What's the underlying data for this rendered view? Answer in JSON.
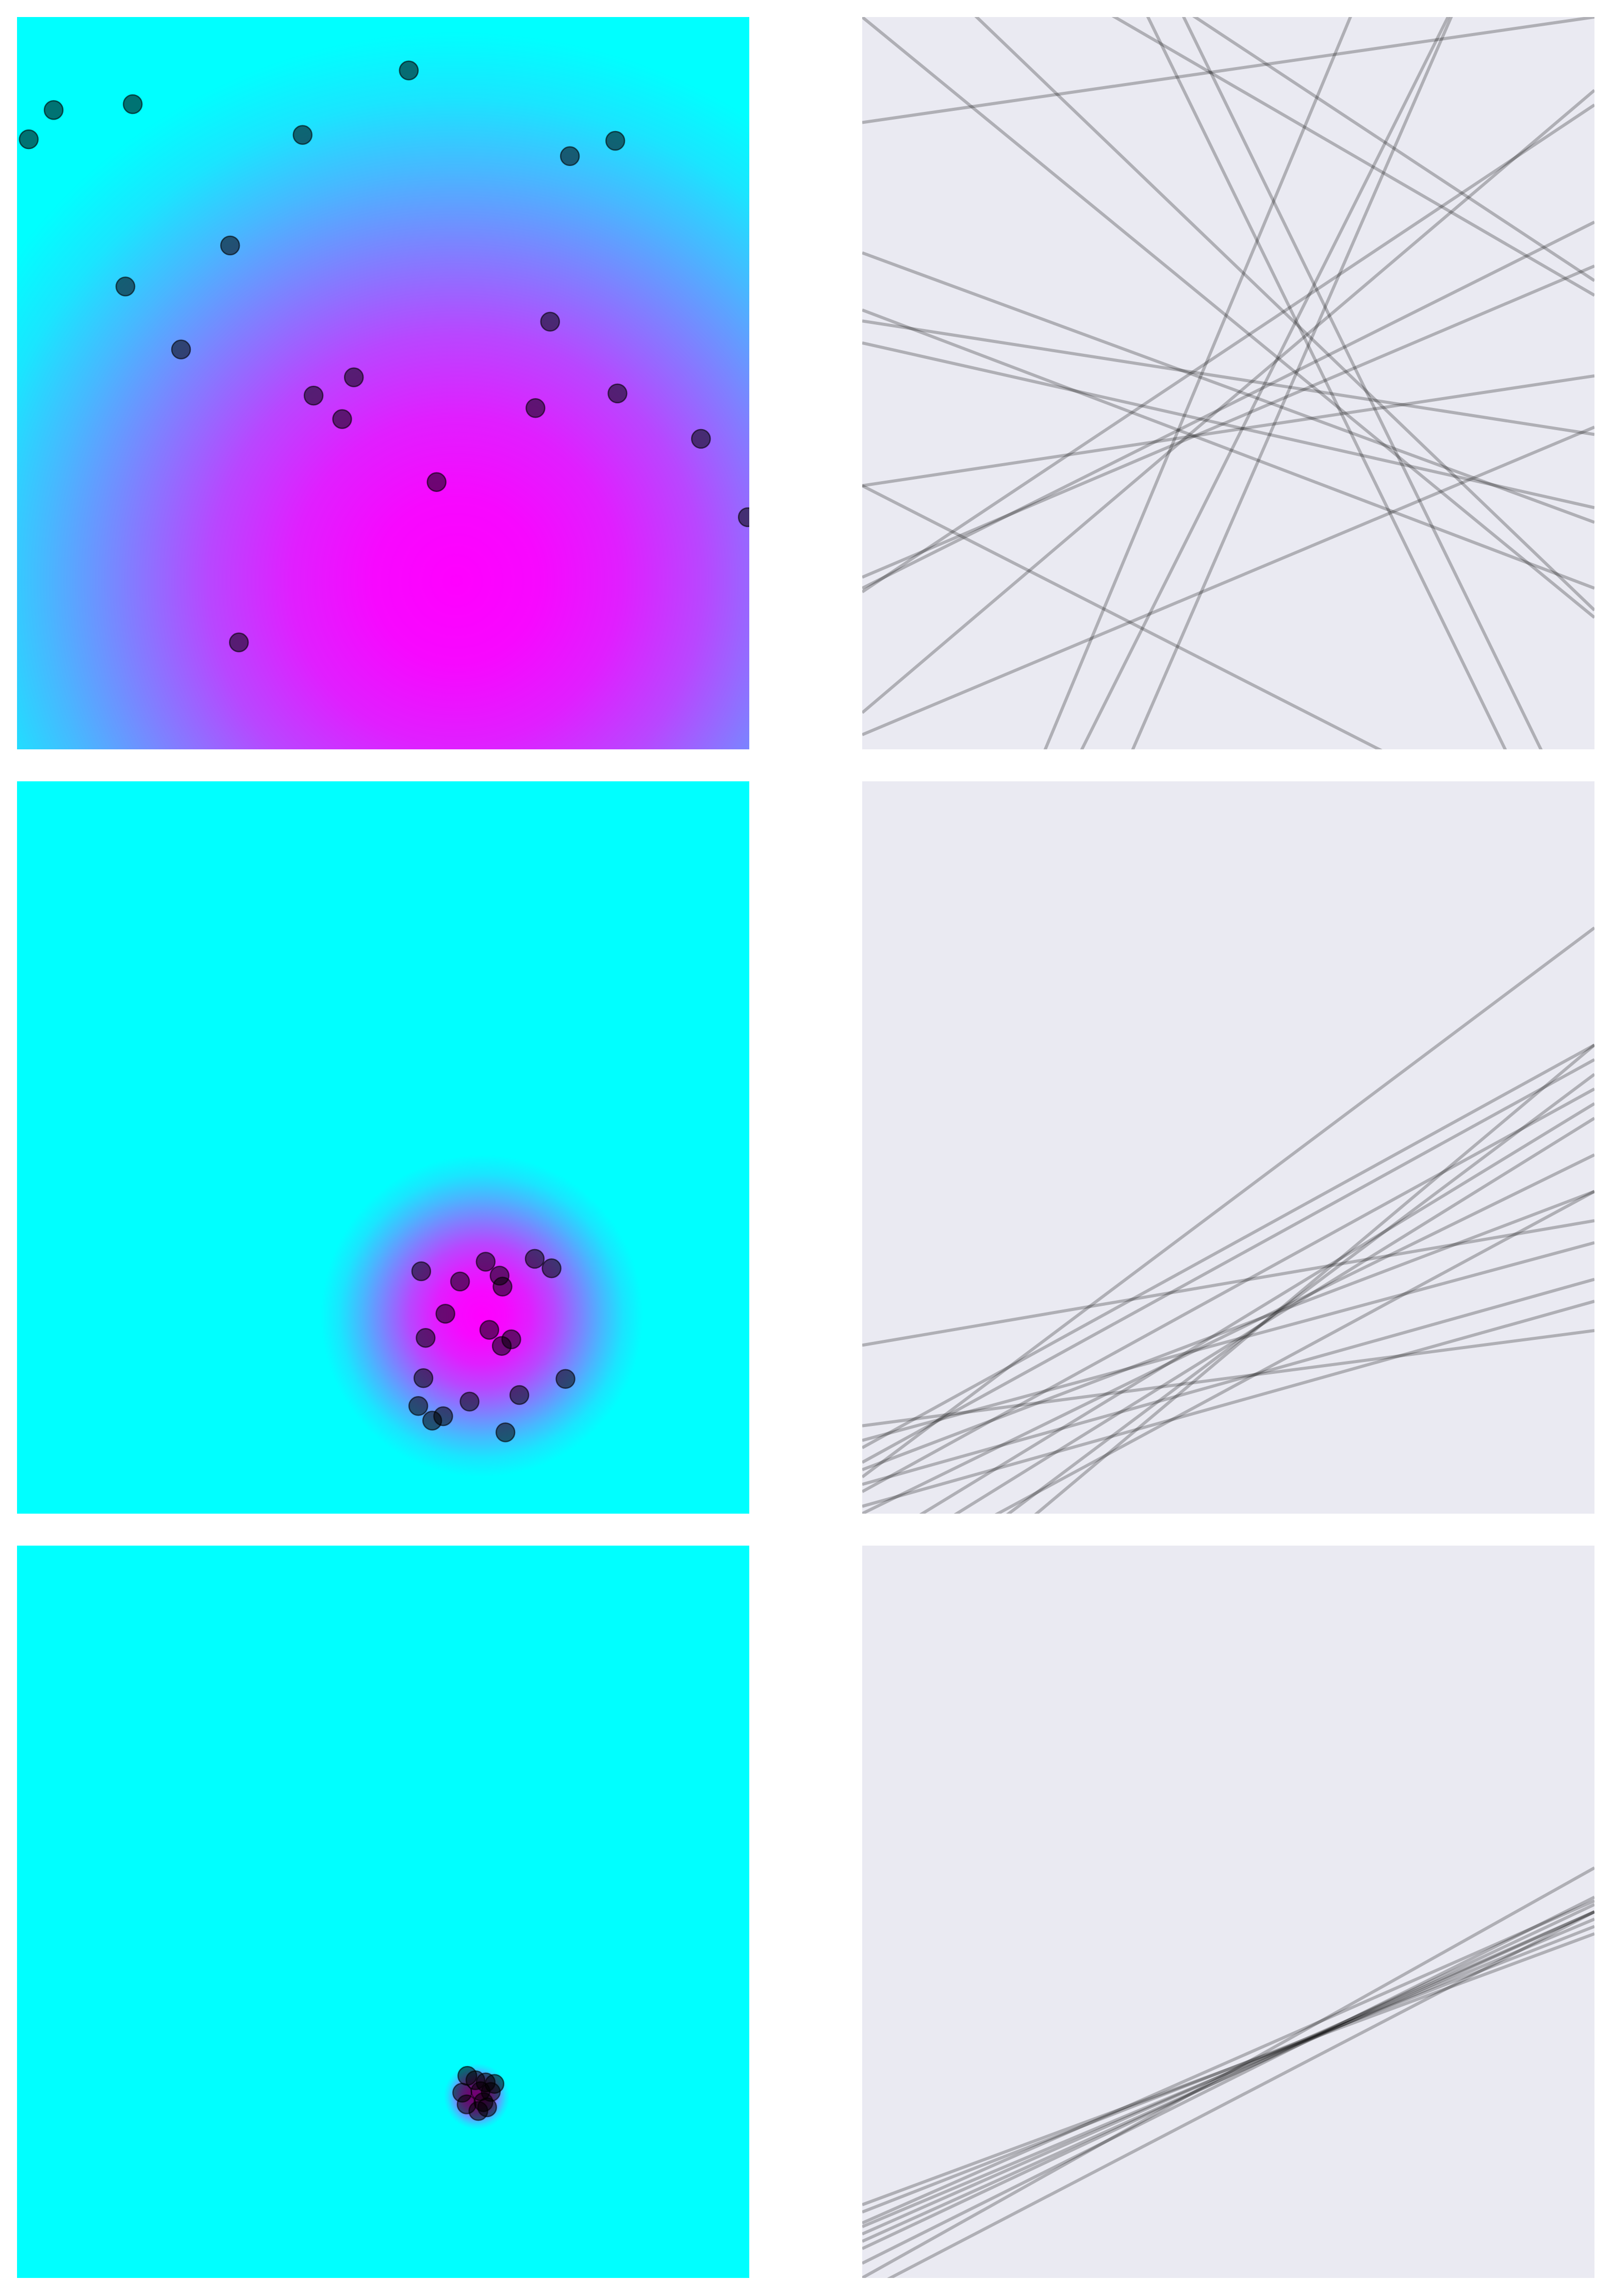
{
  "figure": {
    "rows": 3,
    "cols": 2,
    "gradient_colors": {
      "low": "#00ffff",
      "high": "#ff00ff"
    },
    "line_panel_background": "#eaeaf2",
    "point_color": "#000000",
    "line_color": "#000000"
  },
  "chart_data": [
    {
      "type": "scatter",
      "panel": "top-left",
      "title": "",
      "xlabel": "",
      "ylabel": "",
      "grid": false,
      "xlim": [
        0,
        1
      ],
      "ylim": [
        0,
        1
      ],
      "background": "radial-density",
      "density_center": [
        0.6,
        0.23
      ],
      "density_spread": 0.75,
      "x": [
        0.05,
        0.016,
        0.158,
        0.535,
        0.39,
        0.755,
        0.817,
        0.291,
        0.148,
        0.224,
        0.728,
        0.405,
        0.46,
        0.444,
        0.708,
        0.82,
        0.934,
        0.998,
        0.573,
        0.303
      ],
      "y": [
        0.873,
        0.833,
        0.881,
        0.927,
        0.839,
        0.81,
        0.831,
        0.688,
        0.632,
        0.546,
        0.584,
        0.483,
        0.508,
        0.451,
        0.466,
        0.486,
        0.424,
        0.317,
        0.365,
        0.146
      ]
    },
    {
      "type": "line",
      "panel": "top-right",
      "title": "",
      "xlabel": "",
      "ylabel": "",
      "grid": false,
      "xlim": [
        0,
        1
      ],
      "ylim": [
        0,
        1
      ],
      "lines": [
        {
          "y0": 0.856,
          "y1": 1.0
        },
        {
          "y0": 0.678,
          "y1": 0.31
        },
        {
          "y0": 0.585,
          "y1": 0.43
        },
        {
          "y0": 0.555,
          "y1": 0.33
        },
        {
          "y0": 0.6,
          "y1": 0.22
        },
        {
          "y0": 0.36,
          "y1": 0.51
        },
        {
          "y0": 0.215,
          "y1": 0.88
        },
        {
          "y0": 0.05,
          "y1": 0.9
        },
        {
          "y0": 0.02,
          "y1": 0.44
        },
        {
          "y0": 0.22,
          "y1": 0.72
        },
        {
          "y0": 0.235,
          "y1": 0.66
        },
        {
          "y0": 0.36,
          "y1": -0.15
        },
        {
          "y0": 1.3,
          "y1": 0.64
        },
        {
          "y0": 1.2,
          "y1": 0.62
        },
        {
          "y0": 1.15,
          "y1": 0.19
        },
        {
          "y0": 1.0,
          "y1": 0.18
        },
        {
          "y0": 1.8,
          "y1": -0.25
        },
        {
          "y0": 1.9,
          "y1": -0.15
        },
        {
          "y0": -0.6,
          "y1": 1.4
        },
        {
          "y0": -0.85,
          "y1": 1.45
        },
        {
          "y0": -0.6,
          "y1": 1.8
        }
      ]
    },
    {
      "type": "scatter",
      "panel": "middle-left",
      "title": "",
      "xlabel": "",
      "ylabel": "",
      "grid": false,
      "xlim": [
        0,
        1
      ],
      "ylim": [
        0,
        1
      ],
      "background": "radial-density",
      "density_center": [
        0.635,
        0.27
      ],
      "density_spread": 0.22,
      "x": [
        0.552,
        0.64,
        0.605,
        0.659,
        0.663,
        0.707,
        0.73,
        0.585,
        0.558,
        0.645,
        0.675,
        0.662,
        0.555,
        0.749,
        0.686,
        0.548,
        0.618,
        0.567,
        0.582,
        0.667
      ],
      "y": [
        0.331,
        0.344,
        0.317,
        0.325,
        0.31,
        0.348,
        0.335,
        0.273,
        0.24,
        0.251,
        0.238,
        0.229,
        0.185,
        0.184,
        0.162,
        0.147,
        0.153,
        0.127,
        0.133,
        0.111
      ]
    },
    {
      "type": "line",
      "panel": "middle-right",
      "title": "",
      "xlabel": "",
      "ylabel": "",
      "grid": false,
      "xlim": [
        0,
        1
      ],
      "ylim": [
        0,
        1
      ],
      "lines": [
        {
          "y0": 0.23,
          "y1": 0.4
        },
        {
          "y0": 0.05,
          "y1": 0.8
        },
        {
          "y0": 0.09,
          "y1": 0.64
        },
        {
          "y0": 0.07,
          "y1": 0.62
        },
        {
          "y0": 0.03,
          "y1": 0.58
        },
        {
          "y0": -0.05,
          "y1": 0.56
        },
        {
          "y0": -0.15,
          "y1": 0.6
        },
        {
          "y0": -0.2,
          "y1": 0.64
        },
        {
          "y0": -0.08,
          "y1": 0.54
        },
        {
          "y0": 0.06,
          "y1": 0.44
        },
        {
          "y0": 0.04,
          "y1": 0.32
        },
        {
          "y0": 0.01,
          "y1": 0.29
        },
        {
          "y0": 0.12,
          "y1": 0.25
        },
        {
          "y0": 0.1,
          "y1": 0.37
        },
        {
          "y0": -0.1,
          "y1": 0.44
        },
        {
          "y0": 0.0,
          "y1": 0.49
        }
      ]
    },
    {
      "type": "scatter",
      "panel": "bottom-left",
      "title": "",
      "xlabel": "",
      "ylabel": "",
      "grid": false,
      "xlim": [
        0,
        1
      ],
      "ylim": [
        0,
        1
      ],
      "background": "radial-density",
      "density_center": [
        0.628,
        0.248
      ],
      "density_spread": 0.045,
      "x": [
        0.615,
        0.626,
        0.64,
        0.652,
        0.608,
        0.633,
        0.647,
        0.614,
        0.63,
        0.642,
        0.637
      ],
      "y": [
        0.276,
        0.27,
        0.267,
        0.265,
        0.253,
        0.255,
        0.254,
        0.237,
        0.228,
        0.233,
        0.24
      ]
    },
    {
      "type": "line",
      "panel": "bottom-right",
      "title": "",
      "xlabel": "",
      "ylabel": "",
      "grid": false,
      "xlim": [
        0,
        1
      ],
      "ylim": [
        0,
        1
      ],
      "lines": [
        {
          "y0": 0.0,
          "y1": 0.56
        },
        {
          "y0": 0.02,
          "y1": 0.52
        },
        {
          "y0": 0.04,
          "y1": 0.51
        },
        {
          "y0": 0.05,
          "y1": 0.5
        },
        {
          "y0": 0.06,
          "y1": 0.5
        },
        {
          "y0": 0.07,
          "y1": 0.49
        },
        {
          "y0": 0.075,
          "y1": 0.515
        },
        {
          "y0": 0.09,
          "y1": 0.48
        },
        {
          "y0": 0.1,
          "y1": 0.47
        },
        {
          "y0": -0.02,
          "y1": 0.5
        }
      ]
    }
  ]
}
